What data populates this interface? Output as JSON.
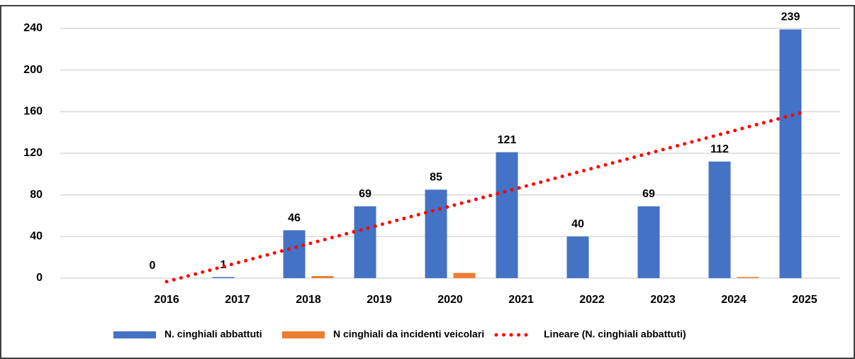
{
  "chart_data": {
    "type": "bar",
    "categories": [
      null,
      "2016",
      "2017",
      "2018",
      "2019",
      "2020",
      "2021",
      "2022",
      "2023",
      "2024",
      "2025"
    ],
    "series": [
      {
        "name": "N. cinghiali abbattuti",
        "color": "#4472c4",
        "values": [
          null,
          0,
          1,
          46,
          69,
          85,
          121,
          40,
          69,
          112,
          239
        ]
      },
      {
        "name": "N cinghiali da incidenti veicolari",
        "color": "#ed7d31",
        "values": [
          null,
          0,
          0,
          2,
          0,
          5,
          0,
          0,
          0,
          1,
          0
        ]
      },
      {
        "name": "Lineare (N. cinghiali abbattuti)",
        "color": "#ff0000",
        "type": "line",
        "values": [
          null,
          -3.4,
          14.7,
          32.9,
          51.0,
          69.1,
          87.2,
          105.4,
          123.5,
          141.6,
          159.8
        ]
      }
    ],
    "data_labels_series": 0,
    "ylim": [
      0,
      240
    ],
    "yticks": [
      0,
      40,
      80,
      120,
      160,
      200,
      240
    ],
    "grid": true
  }
}
